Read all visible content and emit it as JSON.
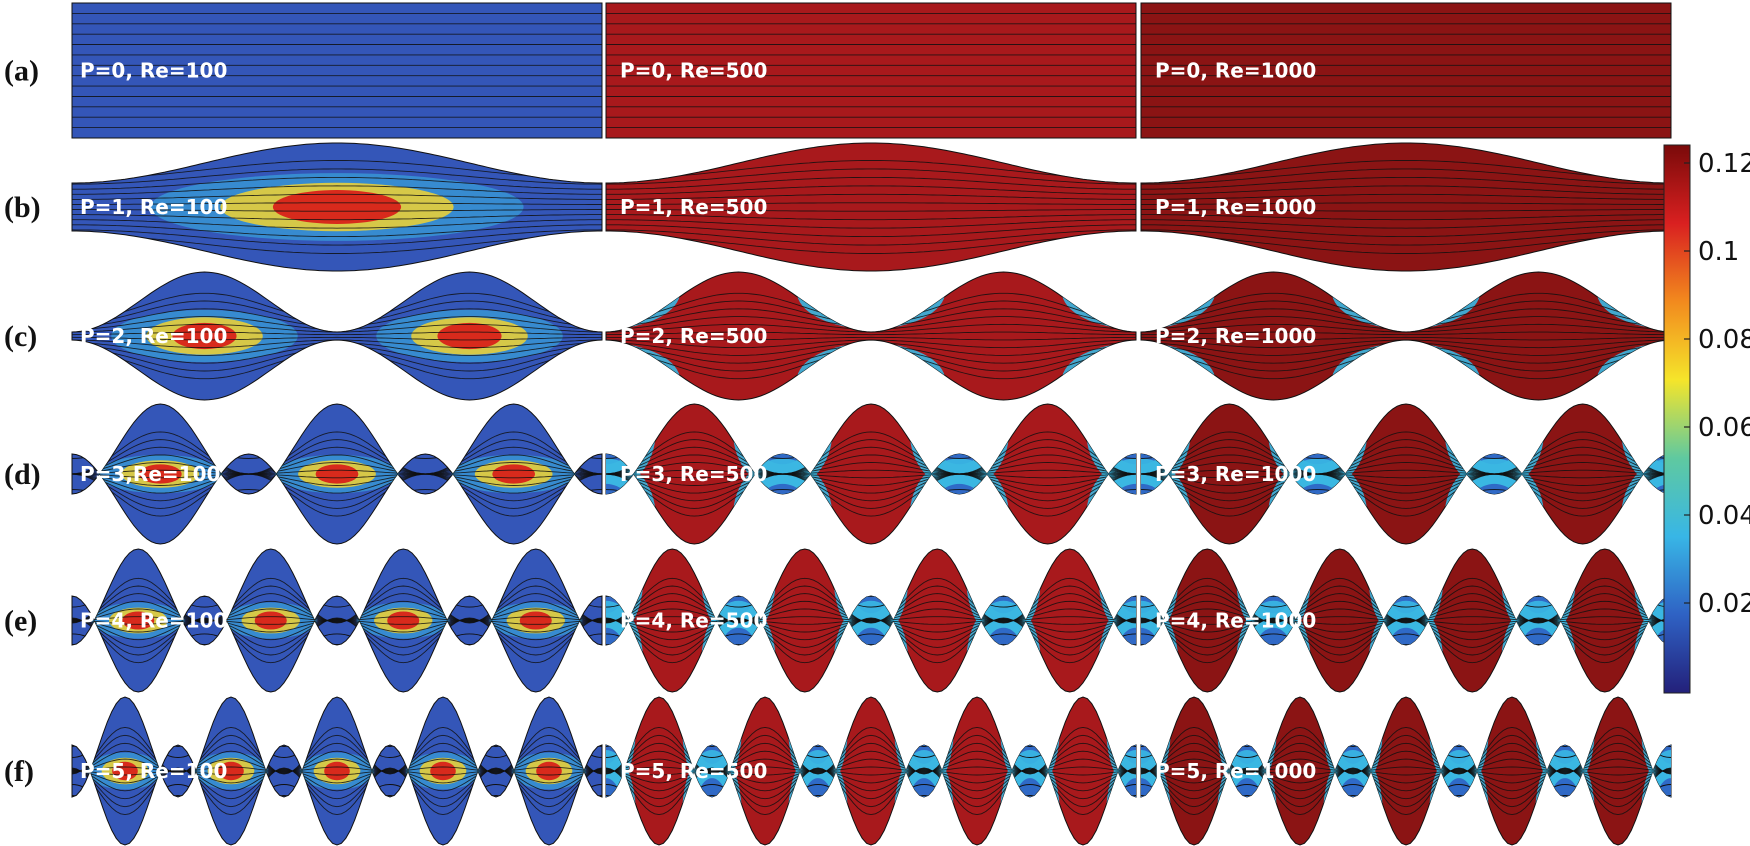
{
  "rows": [
    {
      "label": "(a)",
      "P": 0,
      "panels": [
        "P=0, Re=100",
        "P=0, Re=500",
        "P=0, Re=1000"
      ]
    },
    {
      "label": "(b)",
      "P": 1,
      "panels": [
        "P=1, Re=100",
        "P=1, Re=500",
        "P=1, Re=1000"
      ]
    },
    {
      "label": "(c)",
      "P": 2,
      "panels": [
        "P=2, Re=100",
        "P=2, Re=500",
        "P=2, Re=1000"
      ]
    },
    {
      "label": "(d)",
      "P": 3,
      "panels": [
        "P=3,Re=100",
        "P=3, Re=500",
        "P=3, Re=1000"
      ]
    },
    {
      "label": "(e)",
      "P": 4,
      "panels": [
        "P=4, Re=100",
        "P=4, Re=500",
        "P=4, Re=1000"
      ]
    },
    {
      "label": "(f)",
      "P": 5,
      "panels": [
        "P=5, Re=100",
        "P=5, Re=500",
        "P=5, Re=1000"
      ]
    }
  ],
  "colorbar": {
    "ticks": [
      "0.12",
      "0.1",
      "0.08",
      "0.06",
      "0.04",
      "0.02"
    ],
    "stops": [
      "#7a0a0a",
      "#d92020",
      "#f28a1e",
      "#f5e52a",
      "#5fc9a0",
      "#38b6e6",
      "#2f62c4",
      "#23207a"
    ]
  },
  "colors": {
    "re100": "#3456b8",
    "re500": "#a8191c",
    "re1000": "#8b1414",
    "jet_hot": "#d82a1c",
    "jet_warm": "#f2d230",
    "jet_cool": "#3ab8e3",
    "streamline": "#101010"
  }
}
